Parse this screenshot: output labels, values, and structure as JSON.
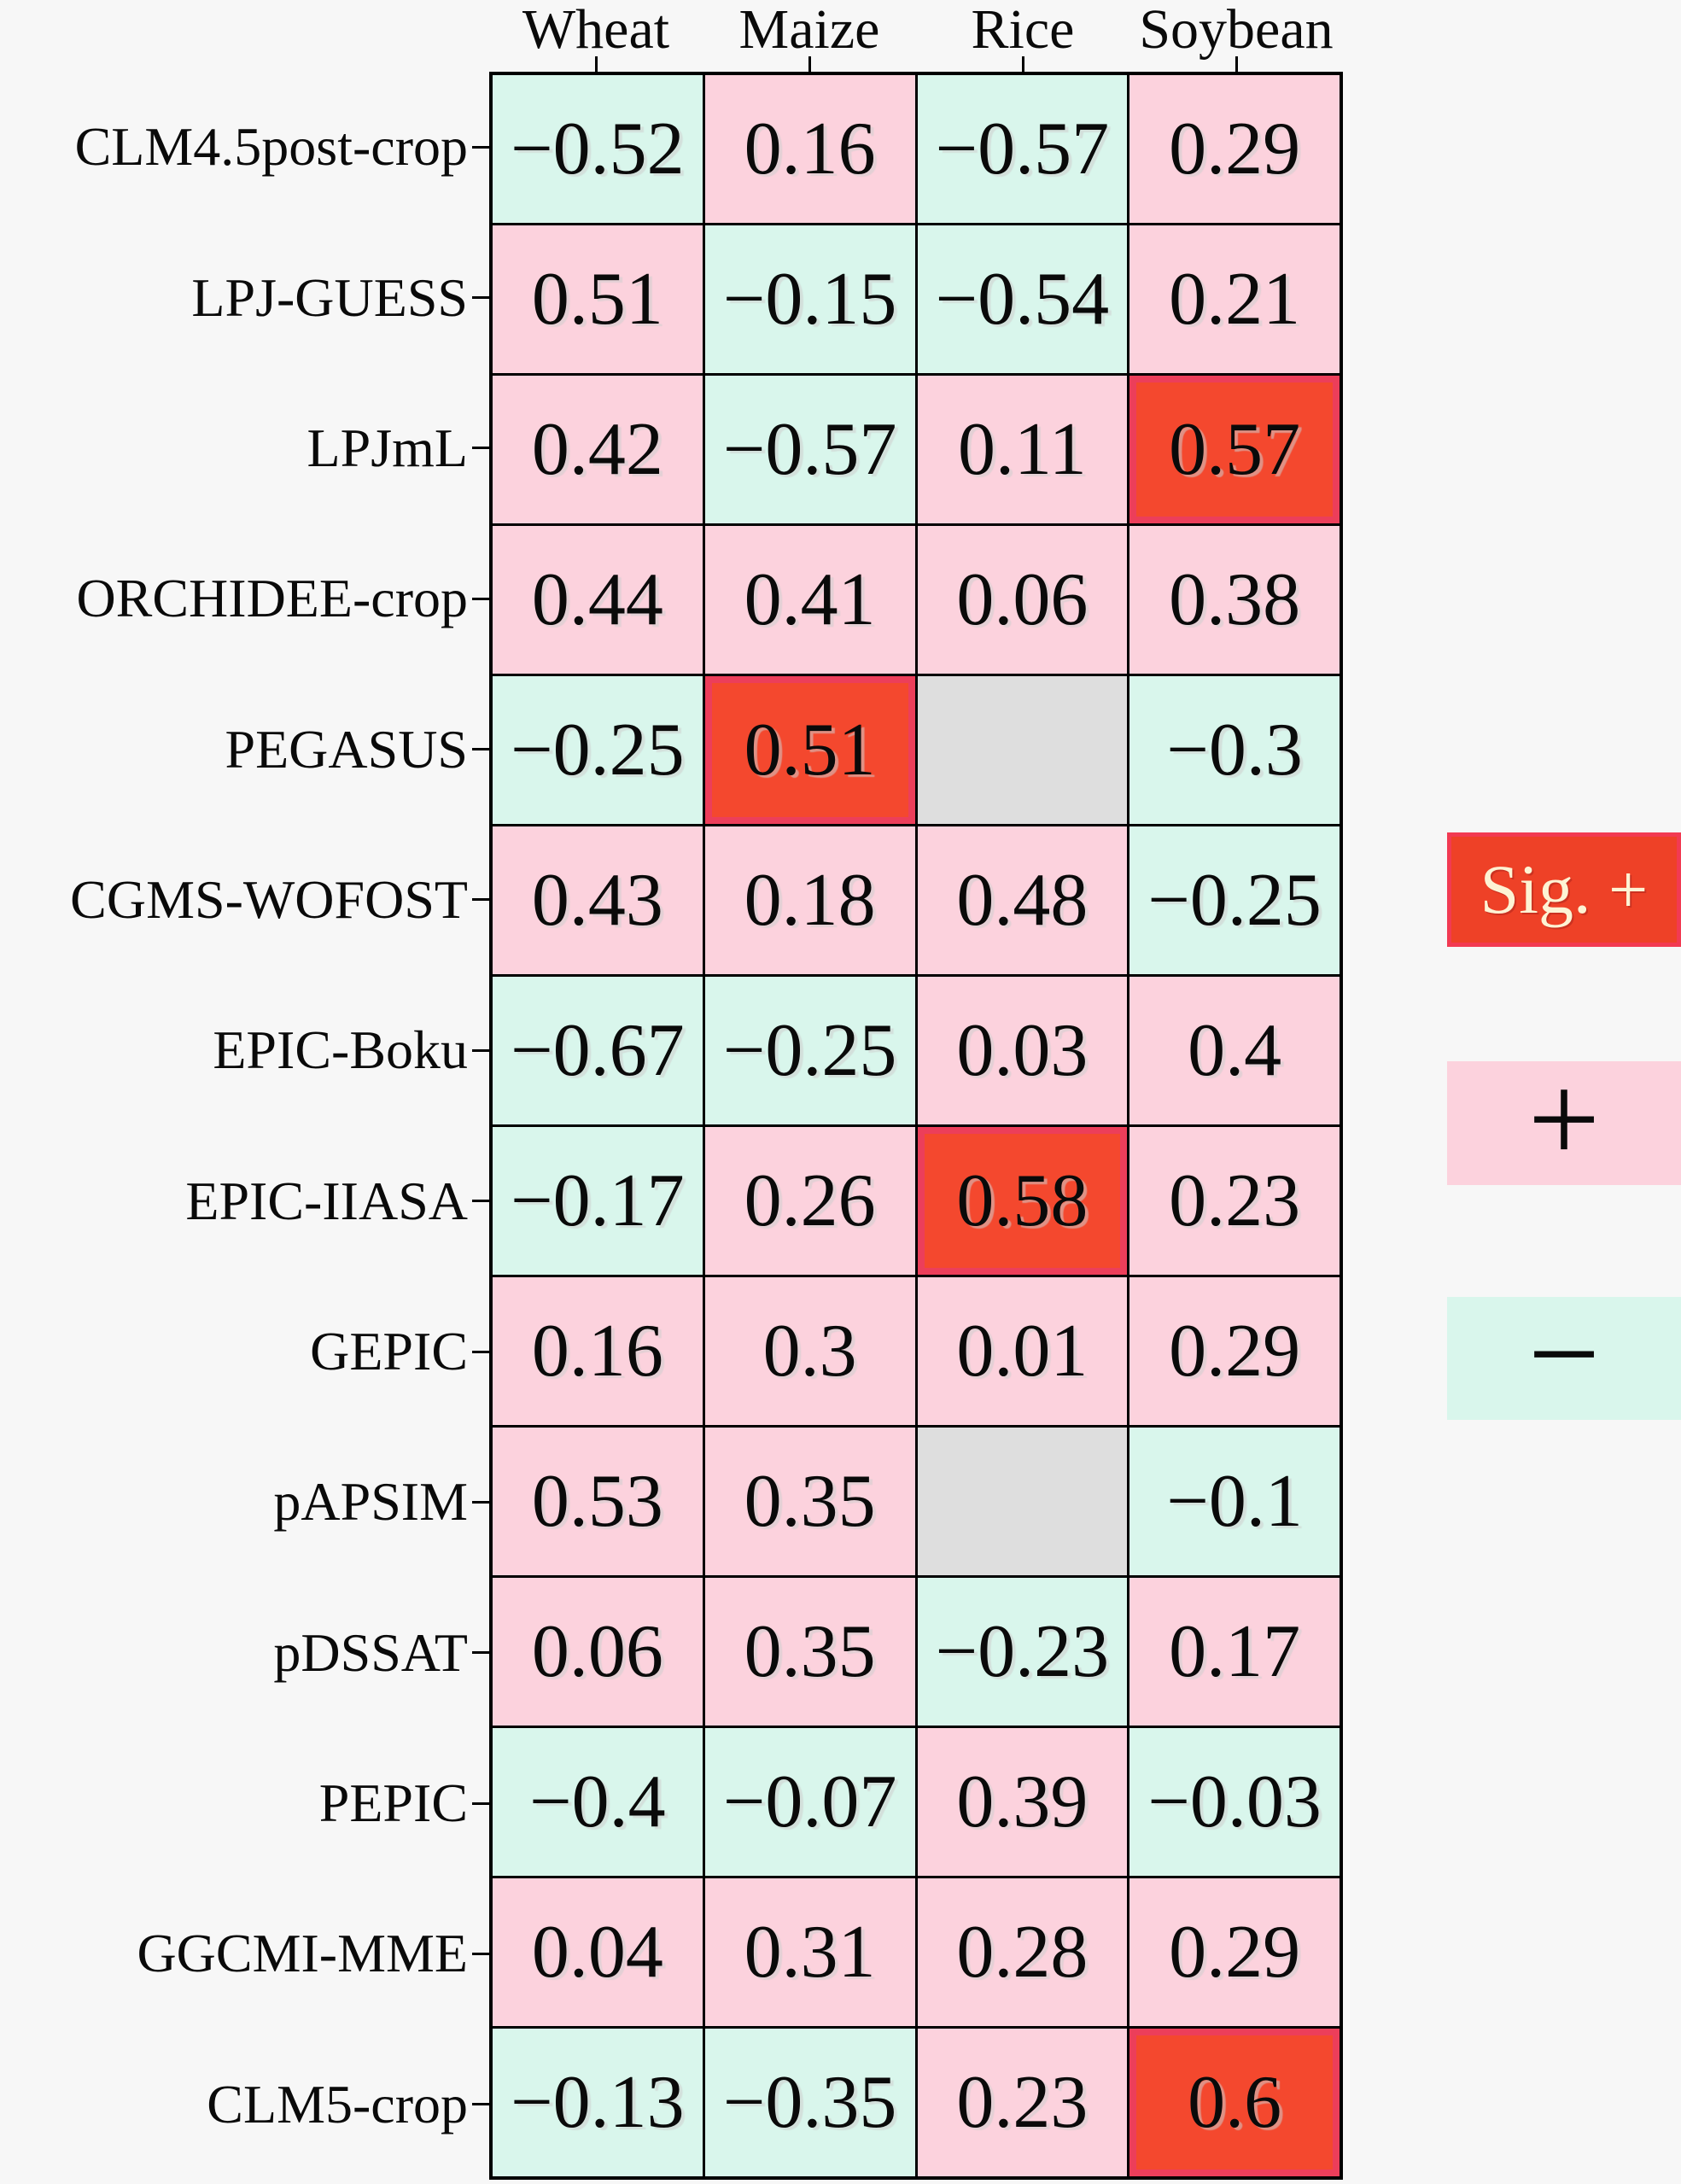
{
  "chart_data": {
    "type": "heatmap",
    "title": "",
    "columns": [
      "Wheat",
      "Maize",
      "Rice",
      "Soybean"
    ],
    "rows": [
      "CLM4.5post-crop",
      "LPJ-GUESS",
      "LPJmL",
      "ORCHIDEE-crop",
      "PEGASUS",
      "CGMS-WOFOST",
      "EPIC-Boku",
      "EPIC-IIASA",
      "GEPIC",
      "pAPSIM",
      "pDSSAT",
      "PEPIC",
      "GGCMI-MME",
      "CLM5-crop"
    ],
    "values": [
      [
        -0.52,
        0.16,
        -0.57,
        0.29
      ],
      [
        0.51,
        -0.15,
        -0.54,
        0.21
      ],
      [
        0.42,
        -0.57,
        0.11,
        0.57
      ],
      [
        0.44,
        0.41,
        0.06,
        0.38
      ],
      [
        -0.25,
        0.51,
        null,
        -0.3
      ],
      [
        0.43,
        0.18,
        0.48,
        -0.25
      ],
      [
        -0.67,
        -0.25,
        0.03,
        0.4
      ],
      [
        -0.17,
        0.26,
        0.58,
        0.23
      ],
      [
        0.16,
        0.3,
        0.01,
        0.29
      ],
      [
        0.53,
        0.35,
        null,
        -0.1
      ],
      [
        0.06,
        0.35,
        -0.23,
        0.17
      ],
      [
        -0.4,
        -0.07,
        0.39,
        -0.03
      ],
      [
        0.04,
        0.31,
        0.28,
        0.29
      ],
      [
        -0.13,
        -0.35,
        0.23,
        0.6
      ]
    ],
    "significant_positive_cells": [
      [
        2,
        3
      ],
      [
        4,
        1
      ],
      [
        7,
        2
      ],
      [
        13,
        3
      ]
    ],
    "missing_cells": [
      [
        4,
        2
      ],
      [
        9,
        2
      ]
    ],
    "legend": [
      {
        "key": "sig-positive",
        "label": "Sig. +"
      },
      {
        "key": "positive",
        "label": "+"
      },
      {
        "key": "negative",
        "label": "−"
      }
    ],
    "layout": {
      "grid": "on",
      "legend_position": "right",
      "cell_text_color": "#0a0a0a"
    },
    "colors": {
      "positive": "#fcd2dd",
      "negative": "#d9f6ec",
      "sig_positive_fill": "#f4482e",
      "sig_positive_border": "#ec3e5a",
      "missing": "#dedede",
      "grid_line": "#000000",
      "background": "#f7f7f7",
      "legend_sig_text": "#fdf3d4"
    }
  }
}
